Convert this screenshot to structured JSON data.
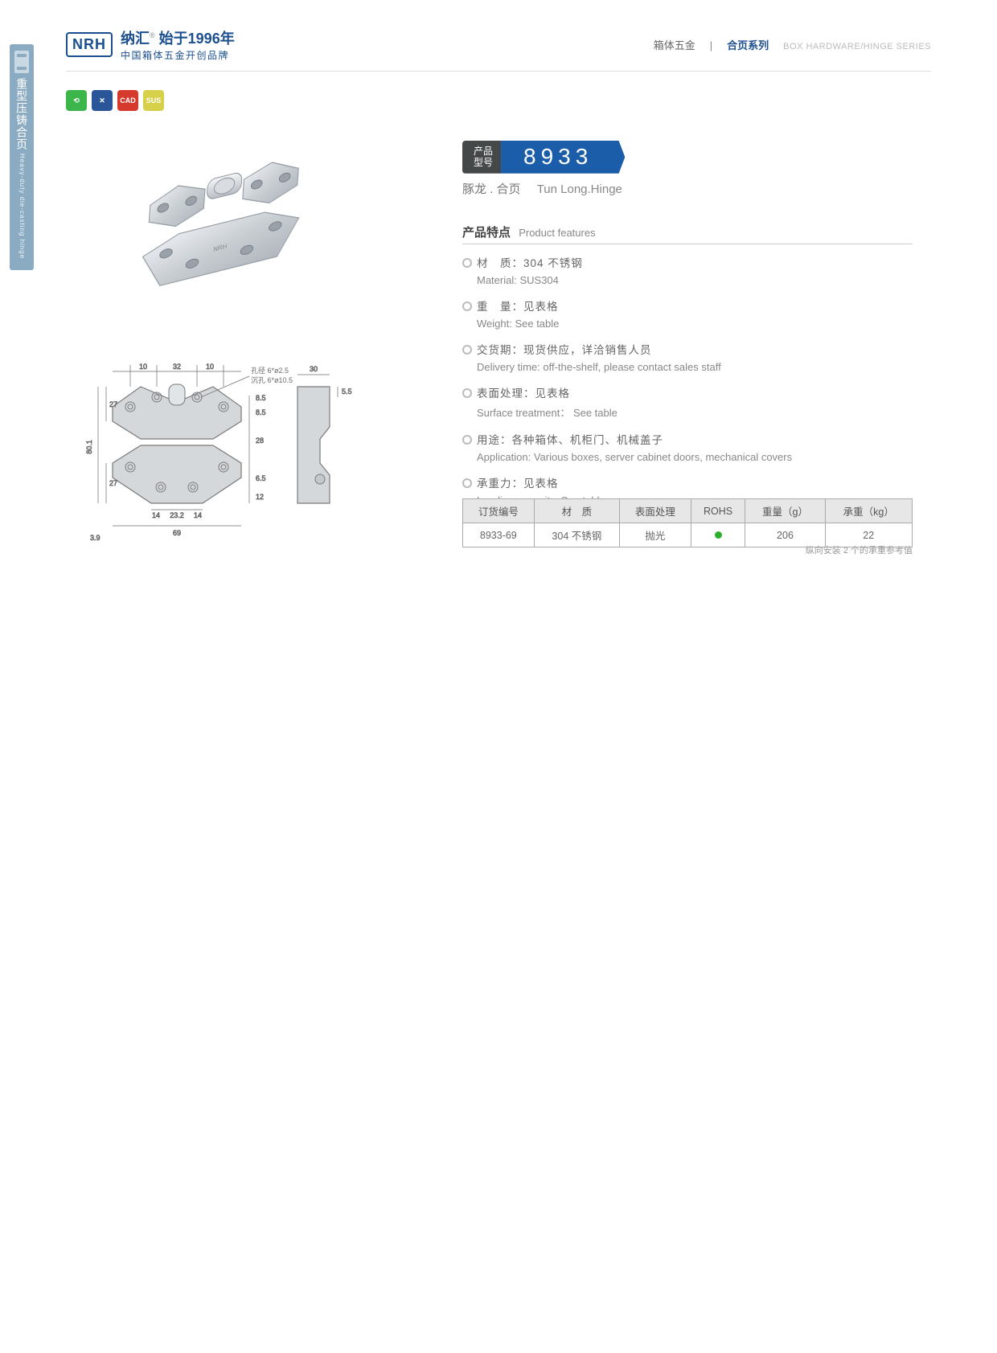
{
  "side_tab": {
    "cn": "重型压铸合页",
    "en": "Heavy-duty die-casting hinge"
  },
  "brand": {
    "logo": "NRH",
    "cn_prefix": "纳汇",
    "reg": "®",
    "cn_suffix": "始于1996年",
    "sub": "中国箱体五金开创品牌"
  },
  "header": {
    "cat1": "箱体五金",
    "sep": "|",
    "cat2": "合页系列",
    "en": "BOX HARDWARE/HINGE SERIES"
  },
  "badges": {
    "b1": "⟲",
    "b2": "✕",
    "b3": "CAD",
    "b4": "SUS"
  },
  "model": {
    "label_l1": "产品",
    "label_l2": "型号",
    "number": "8933",
    "sub_cn": "豚龙 . 合页",
    "sub_en": "Tun Long.Hinge"
  },
  "features": {
    "title_cn": "产品特点",
    "title_en": "Product features",
    "items": [
      {
        "cn": "材　质：304 不锈钢",
        "en": "Material: SUS304"
      },
      {
        "cn": "重　量：见表格",
        "en": "Weight: See table"
      },
      {
        "cn": "交货期：现货供应，详洽销售人员",
        "en": "Delivery time: off-the-shelf, please contact sales staff"
      },
      {
        "cn": "表面处理：见表格",
        "en": "Surface treatment： See table"
      },
      {
        "cn": "用途：各种箱体、机柜门、机械盖子",
        "en": "Application: Various boxes, server cabinet doors, mechanical covers"
      },
      {
        "cn": "承重力：见表格",
        "en": "Loading capacity: See table"
      }
    ]
  },
  "table": {
    "headers": [
      "订货编号",
      "材　质",
      "表面处理",
      "ROHS",
      "重量（g）",
      "承重（kg）"
    ],
    "row": [
      "8933-69",
      "304 不锈钢",
      "抛光",
      "ROHS_DOT",
      "206",
      "22"
    ],
    "note": "纵向安装 2 个的承重参考值"
  },
  "drawing": {
    "hole_label1": "孔径 6*ø2.5",
    "hole_label2": "沉孔 6*ø10.5",
    "dims": {
      "w_total": "69",
      "h_total": "80.1",
      "top_10a": "10",
      "top_32": "32",
      "top_10b": "10",
      "left_27a": "27",
      "mid_28": "28",
      "left_27b": "27",
      "right_85a": "8.5",
      "right_85b": "8.5",
      "right_65": "6.5",
      "right_12": "12",
      "bot_14a": "14",
      "bot_232": "23.2",
      "bot_14b": "14",
      "left_ext": "3.9",
      "side_30": "30",
      "side_55": "5.5"
    },
    "colors": {
      "stroke": "#7a7a7a",
      "fill": "#d5d8db",
      "dim": "#6b6b6b"
    }
  }
}
